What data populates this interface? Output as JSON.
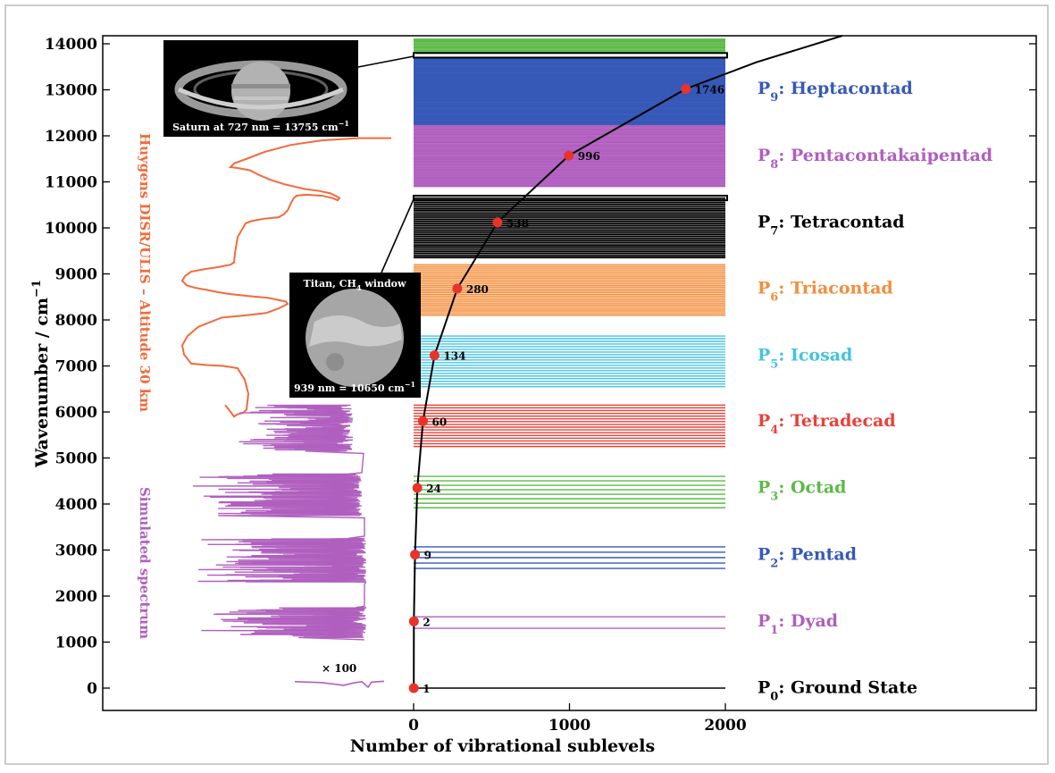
{
  "chart_data": {
    "type": "line",
    "title": "",
    "xlabel": "Number of vibrational sublevels",
    "ylabel": "Wavenumber / cm",
    "ylabel_sup": "−1",
    "xlim": [
      0,
      2000
    ],
    "ylim": [
      0,
      14000
    ],
    "x_ticks": [
      "0",
      "1000",
      "2000"
    ],
    "y_ticks": [
      "0",
      "1000",
      "2000",
      "3000",
      "4000",
      "5000",
      "6000",
      "7000",
      "8000",
      "9000",
      "10000",
      "11000",
      "12000",
      "13000",
      "14000"
    ],
    "x_tick_values": [
      0,
      1000,
      2000
    ],
    "y_tick_values": [
      0,
      1000,
      2000,
      3000,
      4000,
      5000,
      6000,
      7000,
      8000,
      9000,
      10000,
      11000,
      12000,
      13000,
      14000
    ],
    "series": [
      {
        "type": "line+markers",
        "color": "#000000",
        "marker_color": "#e8332b",
        "points": [
          {
            "x": 1,
            "y": 0,
            "label": "1"
          },
          {
            "x": 2,
            "y": 1450,
            "label": "2"
          },
          {
            "x": 9,
            "y": 2900,
            "label": "9"
          },
          {
            "x": 24,
            "y": 4350,
            "label": "24"
          },
          {
            "x": 60,
            "y": 5800,
            "label": "60"
          },
          {
            "x": 134,
            "y": 7230,
            "label": "134"
          },
          {
            "x": 280,
            "y": 8680,
            "label": "280"
          },
          {
            "x": 538,
            "y": 10120,
            "label": "538"
          },
          {
            "x": 996,
            "y": 11570,
            "label": "996"
          },
          {
            "x": 1746,
            "y": 13020,
            "label": "1746"
          }
        ],
        "extension": [
          {
            "x": 1746,
            "y": 13020
          },
          {
            "x": 2200,
            "y": 13600
          },
          {
            "x": 2750,
            "y": 14200
          }
        ]
      }
    ],
    "polyads": [
      {
        "p": "P",
        "sub": "0",
        "name": ": Ground State",
        "color": "#000000",
        "label_y": -150,
        "min": 0,
        "max": 0,
        "count": 1
      },
      {
        "p": "P",
        "sub": "1",
        "name": ": Dyad",
        "color": "#b05fbf",
        "label_y": 1300,
        "min": 1300,
        "max": 1550,
        "count": 2
      },
      {
        "p": "P",
        "sub": "2",
        "name": ": Pentad",
        "color": "#3659b8",
        "label_y": 2750,
        "min": 2600,
        "max": 3070,
        "count": 5
      },
      {
        "p": "P",
        "sub": "3",
        "name": ": Octad",
        "color": "#5cba47",
        "label_y": 4200,
        "min": 3920,
        "max": 4600,
        "count": 8
      },
      {
        "p": "P",
        "sub": "4",
        "name": ": Tetradecad",
        "color": "#e8413a",
        "label_y": 5650,
        "min": 5250,
        "max": 6150,
        "count": 16
      },
      {
        "p": "P",
        "sub": "5",
        "name": ": Icosad",
        "color": "#45c2e0",
        "label_y": 7080,
        "min": 6550,
        "max": 7650,
        "count": 20
      },
      {
        "p": "P",
        "sub": "6",
        "name": ": Triacontad",
        "color": "#f38d3b",
        "label_y": 8530,
        "min": 8100,
        "max": 9200,
        "count": 30
      },
      {
        "p": "P",
        "sub": "7",
        "name": ": Tetracontad",
        "color": "#000000",
        "label_y": 9970,
        "min": 9350,
        "max": 10650,
        "count": 40
      },
      {
        "p": "P",
        "sub": "8",
        "name": ": Pentacontakaipentad",
        "color": "#b05fbf",
        "label_y": 11420,
        "min": 10900,
        "max": 12250,
        "count": 55
      },
      {
        "p": "P",
        "sub": "9",
        "name": ": Heptacontad",
        "color": "#3659b8",
        "label_y": 12870,
        "min": 12250,
        "max": 13700,
        "count": 70
      },
      {
        "p": "",
        "sub": "",
        "name": "",
        "color": "#5cba47",
        "label_y": null,
        "min": 13800,
        "max": 14100,
        "count": 12
      }
    ],
    "windows": [
      {
        "name": "saturn",
        "y_low": 13700,
        "y_high": 13800
      },
      {
        "name": "titan",
        "y_low": 10600,
        "y_high": 10700
      }
    ],
    "side_labels": {
      "huygens": "Huygens DISR/ULIS – Altitude 30 km",
      "huygens_color": "#f26a3b",
      "simulated": "Simulated spectrum",
      "simulated_color": "#b05fbf",
      "x100": "× 100"
    },
    "images": {
      "saturn_caption": "Saturn at 727 nm = 13755 cm",
      "saturn_caption_sup": "−1",
      "titan_caption_top": "Titan, CH",
      "titan_caption_top_sub": "4",
      "titan_caption_top_tail": " window",
      "titan_caption_bottom": "939 nm = 10650 cm",
      "titan_caption_bottom_sup": "−1"
    },
    "grid": false,
    "legend": "right"
  }
}
